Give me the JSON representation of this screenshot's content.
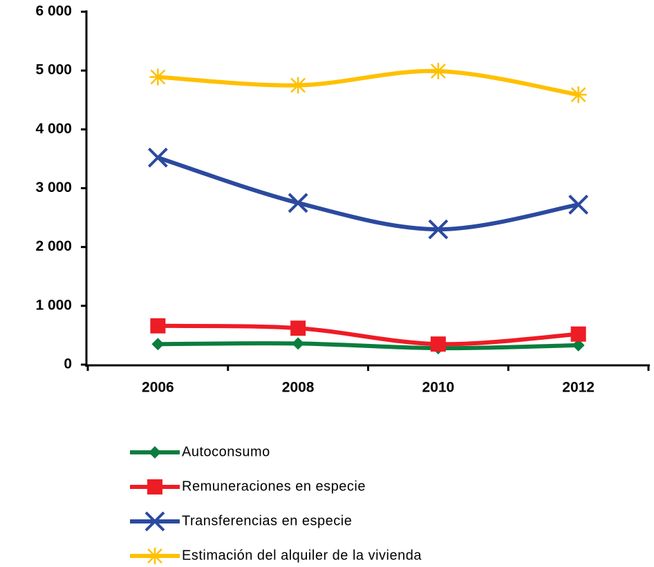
{
  "chart_data": {
    "type": "line",
    "categories": [
      "2006",
      "2008",
      "2010",
      "2012"
    ],
    "series": [
      {
        "name": "Autoconsumo",
        "color": "#0b7d3e",
        "marker": "diamond",
        "values": [
          350,
          360,
          280,
          330
        ]
      },
      {
        "name": "Remuneraciones en especie",
        "color": "#ee1c25",
        "marker": "square",
        "values": [
          660,
          620,
          350,
          520
        ]
      },
      {
        "name": "Transferencias en especie",
        "color": "#2b4a9f",
        "marker": "x",
        "values": [
          3520,
          2750,
          2300,
          2720
        ]
      },
      {
        "name": "Estimación del alquiler de la vivienda",
        "color": "#ffc000",
        "marker": "star",
        "values": [
          4890,
          4750,
          4990,
          4590
        ]
      }
    ],
    "ylim": [
      0,
      6000
    ],
    "yticks": [
      0,
      {
        "value": 1000,
        "label": "1 000"
      },
      {
        "value": 2000,
        "label": "2 000"
      },
      {
        "value": 3000,
        "label": "3 000"
      },
      {
        "value": 4000,
        "label": "4 000"
      },
      {
        "value": 5000,
        "label": "5 000"
      },
      {
        "value": 6000,
        "label": "6 000"
      }
    ],
    "smooth": true,
    "legend": "bottom"
  }
}
